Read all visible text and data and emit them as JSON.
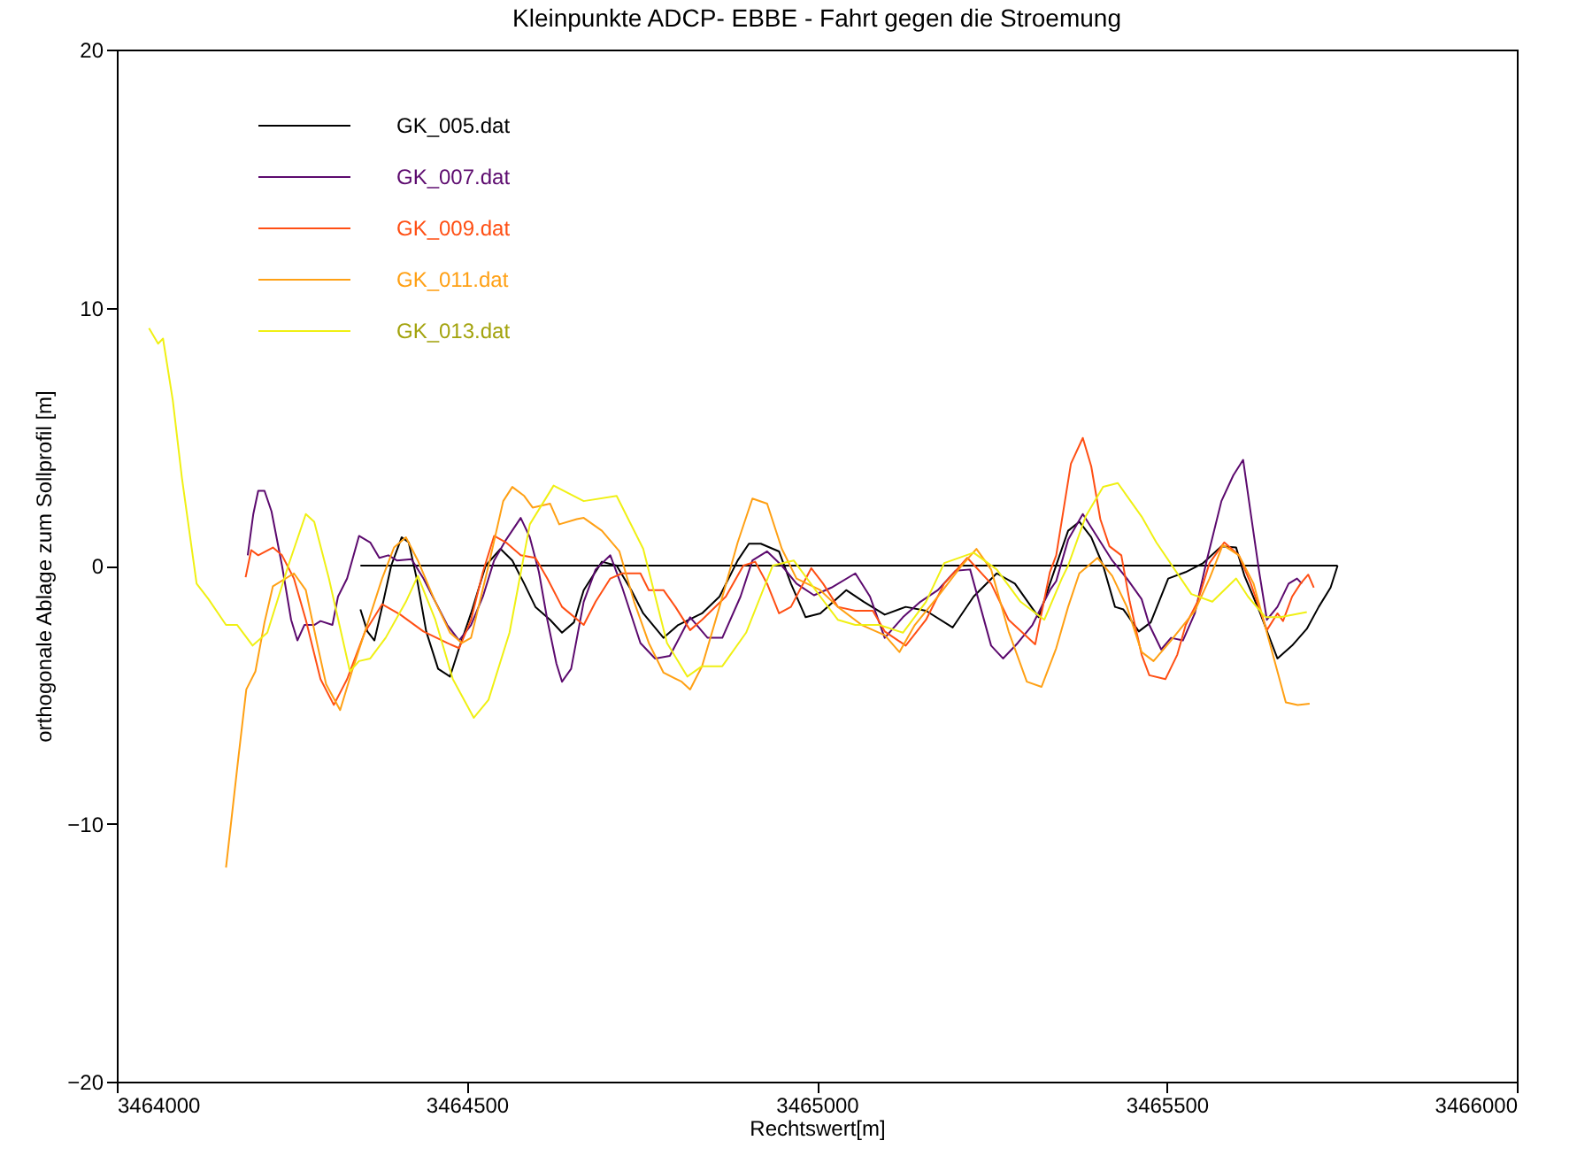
{
  "chart_data": {
    "type": "line",
    "title": "Kleinpunkte ADCP- EBBE - Fahrt gegen die Stroemung",
    "xlabel": "Rechtswert[m]",
    "ylabel": "orthogonale Ablage zum Sollprofil [m]",
    "xlim": [
      3464000,
      3466000
    ],
    "xticks": [
      3464000,
      3464500,
      3465000,
      3465500,
      3466000
    ],
    "ylim": [
      -20,
      20
    ],
    "yticks": [
      -20,
      -10,
      0,
      10,
      20
    ],
    "grid": false,
    "legend": "top left",
    "series": [
      {
        "color": "#000000",
        "x": [
          3464348,
          3465744
        ],
        "values": [
          0,
          0
        ]
      },
      {
        "name": "GK_005.dat",
        "color": "#000000",
        "x": [
          3464348,
          3464358,
          3464368,
          3464379,
          3464392,
          3464407,
          3464417,
          3464430,
          3464442,
          3464459,
          3464476,
          3464489,
          3464506,
          3464527,
          3464548,
          3464565,
          3464582,
          3464598,
          3464619,
          3464636,
          3464653,
          3464667,
          3464693,
          3464714,
          3464735,
          3464752,
          3464781,
          3464802,
          3464836,
          3464861,
          3464887,
          3464903,
          3464920,
          3464946,
          3464963,
          3464984,
          3465005,
          3465042,
          3465067,
          3465097,
          3465127,
          3465156,
          3465194,
          3465224,
          3465257,
          3465283,
          3465317,
          3465333,
          3465350,
          3465359,
          3465375,
          3465392,
          3465409,
          3465426,
          3465438,
          3465460,
          3465477,
          3465502,
          3465527,
          3465552,
          3465578,
          3465599,
          3465611,
          3465632,
          3465658,
          3465679,
          3465700,
          3465717,
          3465734,
          3465744
        ],
        "values": [
          -1.7,
          -2.55,
          -2.9,
          -1.6,
          0,
          1.1,
          0.9,
          -0.7,
          -2.55,
          -4.0,
          -4.3,
          -3.2,
          -1.85,
          0,
          0.65,
          0.2,
          -0.7,
          -1.6,
          -2.1,
          -2.6,
          -2.2,
          -0.95,
          0.15,
          0,
          -0.95,
          -1.85,
          -2.8,
          -2.3,
          -1.85,
          -1.2,
          0.2,
          0.85,
          0.85,
          0.55,
          -0.7,
          -2.0,
          -1.85,
          -0.95,
          -1.4,
          -1.9,
          -1.6,
          -1.75,
          -2.4,
          -1.2,
          -0.3,
          -0.7,
          -2.0,
          -0.7,
          0.65,
          1.35,
          1.7,
          1.1,
          0,
          -1.6,
          -1.7,
          -2.55,
          -2.2,
          -0.5,
          -0.25,
          0.1,
          0.75,
          0.7,
          -0.4,
          -1.75,
          -3.6,
          -3.1,
          -2.45,
          -1.6,
          -0.85,
          0
        ]
      },
      {
        "name": "GK_007.dat",
        "color": "#5c0a6e",
        "x": [
          3464187,
          3464195,
          3464202,
          3464211,
          3464221,
          3464236,
          3464249,
          3464258,
          3464268,
          3464282,
          3464291,
          3464308,
          3464316,
          3464329,
          3464346,
          3464362,
          3464375,
          3464388,
          3464400,
          3464421,
          3464438,
          3464455,
          3464472,
          3464489,
          3464506,
          3464523,
          3464539,
          3464556,
          3464577,
          3464590,
          3464603,
          3464615,
          3464628,
          3464636,
          3464649,
          3464667,
          3464684,
          3464705,
          3464722,
          3464748,
          3464769,
          3464790,
          3464819,
          3464844,
          3464865,
          3464891,
          3464908,
          3464929,
          3464950,
          3464971,
          3464996,
          3465021,
          3465055,
          3465076,
          3465097,
          3465123,
          3465148,
          3465173,
          3465198,
          3465219,
          3465249,
          3465266,
          3465287,
          3465308,
          3465333,
          3465342,
          3465359,
          3465380,
          3465401,
          3465422,
          3465443,
          3465464,
          3465475,
          3465492,
          3465506,
          3465523,
          3465540,
          3465557,
          3465578,
          3465595,
          3465609,
          3465620,
          3465632,
          3465643,
          3465658,
          3465674,
          3465686,
          3465693
        ],
        "values": [
          0.4,
          2.0,
          2.9,
          2.9,
          2.1,
          0,
          -2.1,
          -2.9,
          -2.3,
          -2.3,
          -2.15,
          -2.3,
          -1.2,
          -0.5,
          1.15,
          0.9,
          0.3,
          0.4,
          0.2,
          0.25,
          -0.5,
          -1.4,
          -2.3,
          -2.9,
          -2.3,
          -1.2,
          0.2,
          1.0,
          1.85,
          1.1,
          -0.25,
          -2.1,
          -3.8,
          -4.5,
          -4.0,
          -1.4,
          -0.15,
          0.4,
          -0.85,
          -3.0,
          -3.6,
          -3.5,
          -2.0,
          -2.8,
          -2.8,
          -1.2,
          0.2,
          0.55,
          0,
          -0.7,
          -1.15,
          -0.85,
          -0.3,
          -1.2,
          -2.8,
          -2.0,
          -1.4,
          -0.95,
          -0.2,
          -0.15,
          -3.1,
          -3.6,
          -3.0,
          -2.3,
          -0.95,
          -0.6,
          1.0,
          2.0,
          1.1,
          0.2,
          -0.5,
          -1.3,
          -2.3,
          -3.25,
          -2.8,
          -2.9,
          -1.85,
          0.2,
          2.5,
          3.5,
          4.1,
          2.0,
          -0.25,
          -2.1,
          -1.6,
          -0.7,
          -0.5,
          -0.7
        ]
      },
      {
        "name": "GK_009.dat",
        "color": "#ff4f14",
        "x": [
          3464184,
          3464192,
          3464202,
          3464223,
          3464236,
          3464253,
          3464270,
          3464291,
          3464310,
          3464329,
          3464354,
          3464379,
          3464405,
          3464438,
          3464472,
          3464489,
          3464506,
          3464523,
          3464539,
          3464556,
          3464577,
          3464598,
          3464615,
          3464636,
          3464667,
          3464684,
          3464705,
          3464722,
          3464748,
          3464760,
          3464781,
          3464798,
          3464819,
          3464836,
          3464870,
          3464895,
          3464912,
          3464929,
          3464946,
          3464963,
          3464992,
          3465009,
          3465030,
          3465055,
          3465080,
          3465097,
          3465127,
          3465156,
          3465182,
          3465215,
          3465249,
          3465274,
          3465312,
          3465333,
          3465342,
          3465363,
          3465380,
          3465392,
          3465405,
          3465418,
          3465435,
          3465447,
          3465464,
          3465475,
          3465498,
          3465515,
          3465527,
          3465544,
          3465561,
          3465582,
          3465603,
          3465620,
          3465643,
          3465658,
          3465666,
          3465679,
          3465691,
          3465702,
          3465710
        ],
        "values": [
          -0.45,
          0.6,
          0.4,
          0.7,
          0.4,
          -0.5,
          -2.1,
          -4.4,
          -5.4,
          -4.4,
          -2.6,
          -1.5,
          -1.9,
          -2.55,
          -3.0,
          -3.2,
          -2.1,
          -0.25,
          1.15,
          0.9,
          0.4,
          0.3,
          -0.5,
          -1.6,
          -2.3,
          -1.4,
          -0.5,
          -0.3,
          -0.3,
          -0.95,
          -0.95,
          -1.6,
          -2.5,
          -2.1,
          -1.2,
          0,
          0.15,
          -0.7,
          -1.85,
          -1.6,
          -0.1,
          -0.7,
          -1.6,
          -1.75,
          -1.75,
          -2.55,
          -3.1,
          -2.1,
          -0.7,
          0.3,
          -0.7,
          -2.1,
          -3.05,
          -0.25,
          0.4,
          3.95,
          4.95,
          3.85,
          1.8,
          0.75,
          0.4,
          -1.4,
          -3.45,
          -4.25,
          -4.4,
          -3.45,
          -2.3,
          -1.4,
          0.1,
          0.9,
          0.4,
          -0.7,
          -2.5,
          -1.85,
          -2.15,
          -1.2,
          -0.7,
          -0.35,
          -0.85
        ]
      },
      {
        "name": "GK_011.dat",
        "color": "#ffa014",
        "x": [
          3464156,
          3464173,
          3464185,
          3464198,
          3464211,
          3464223,
          3464253,
          3464270,
          3464286,
          3464299,
          3464319,
          3464337,
          3464354,
          3464379,
          3464396,
          3464413,
          3464430,
          3464455,
          3464476,
          3464493,
          3464506,
          3464531,
          3464552,
          3464565,
          3464582,
          3464594,
          3464619,
          3464632,
          3464657,
          3464667,
          3464693,
          3464718,
          3464739,
          3464760,
          3464781,
          3464807,
          3464819,
          3464836,
          3464861,
          3464887,
          3464908,
          3464929,
          3464950,
          3464971,
          3465005,
          3465030,
          3465064,
          3465097,
          3465118,
          3465140,
          3465173,
          3465207,
          3465228,
          3465249,
          3465274,
          3465300,
          3465321,
          3465342,
          3465359,
          3465375,
          3465401,
          3465422,
          3465443,
          3465464,
          3465481,
          3465506,
          3465540,
          3465561,
          3465580,
          3465603,
          3465624,
          3465649,
          3465670,
          3465687,
          3465704
        ],
        "values": [
          -11.7,
          -7.6,
          -4.8,
          -4.1,
          -2.2,
          -0.8,
          -0.3,
          -0.95,
          -3.0,
          -4.6,
          -5.6,
          -4.0,
          -2.6,
          -0.5,
          0.7,
          1.1,
          0.2,
          -1.4,
          -2.6,
          -3.0,
          -2.8,
          0,
          2.5,
          3.05,
          2.7,
          2.25,
          2.4,
          1.6,
          1.8,
          1.85,
          1.35,
          0.55,
          -1.4,
          -3.0,
          -4.15,
          -4.5,
          -4.8,
          -3.9,
          -1.6,
          0.9,
          2.6,
          2.4,
          0.65,
          -0.5,
          -0.95,
          -1.6,
          -2.3,
          -2.7,
          -3.35,
          -2.3,
          -1.2,
          0,
          0.65,
          -0.15,
          -2.55,
          -4.5,
          -4.7,
          -3.2,
          -1.6,
          -0.3,
          0.3,
          -0.4,
          -1.6,
          -3.35,
          -3.7,
          -2.9,
          -1.75,
          -0.5,
          0.8,
          0.4,
          -0.7,
          -3.2,
          -5.3,
          -5.4,
          -5.35
        ]
      },
      {
        "name": "GK_013.dat",
        "color": "#f0f014",
        "x": [
          3464046,
          3464059,
          3464066,
          3464080,
          3464093,
          3464114,
          3464131,
          3464156,
          3464172,
          3464194,
          3464215,
          3464245,
          3464270,
          3464282,
          3464303,
          3464333,
          3464346,
          3464362,
          3464384,
          3464413,
          3464430,
          3464455,
          3464480,
          3464510,
          3464531,
          3464561,
          3464590,
          3464624,
          3464667,
          3464714,
          3464752,
          3464786,
          3464815,
          3464836,
          3464865,
          3464899,
          3464937,
          3464967,
          3465005,
          3465030,
          3465055,
          3465089,
          3465123,
          3465156,
          3465182,
          3465224,
          3465257,
          3465291,
          3465325,
          3465350,
          3465359,
          3465384,
          3465409,
          3465430,
          3465464,
          3465485,
          3465535,
          3465565,
          3465599,
          3465616,
          3465641,
          3465662,
          3465700
        ],
        "values": [
          9.2,
          8.6,
          8.8,
          6.4,
          3.4,
          -0.7,
          -1.3,
          -2.3,
          -2.3,
          -3.1,
          -2.6,
          0,
          2.0,
          1.7,
          -0.5,
          -4.1,
          -3.7,
          -3.6,
          -2.8,
          -1.4,
          -0.4,
          -2.1,
          -4.4,
          -5.9,
          -5.2,
          -2.6,
          1.6,
          3.1,
          2.5,
          2.7,
          0.65,
          -3.0,
          -4.3,
          -3.9,
          -3.9,
          -2.6,
          0,
          0.2,
          -1.2,
          -2.1,
          -2.3,
          -2.3,
          -2.6,
          -1.4,
          0.1,
          0.5,
          -0.15,
          -1.4,
          -2.1,
          -0.5,
          0,
          1.9,
          3.05,
          3.2,
          1.9,
          0.9,
          -1.1,
          -1.4,
          -0.5,
          -1.2,
          -2.0,
          -2.0,
          -1.8
        ]
      }
    ]
  }
}
